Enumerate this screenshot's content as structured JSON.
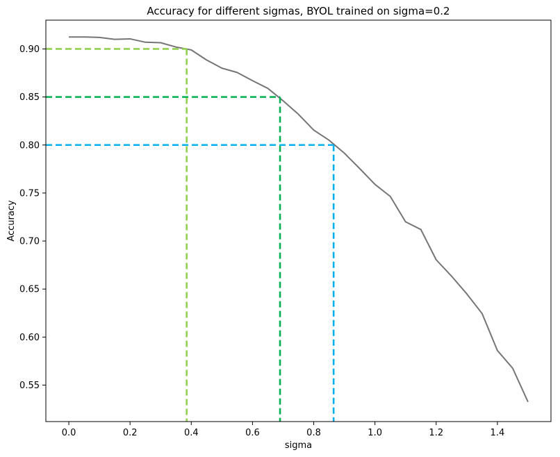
{
  "chart_data": {
    "type": "line",
    "title": "Accuracy for different sigmas, BYOL trained on sigma=0.2",
    "xlabel": "sigma",
    "ylabel": "Accuracy",
    "xlim": [
      -0.075,
      1.575
    ],
    "ylim": [
      0.512,
      0.93
    ],
    "grid": false,
    "x_ticks": [
      "0.0",
      "0.2",
      "0.4",
      "0.6",
      "0.8",
      "1.0",
      "1.2",
      "1.4"
    ],
    "y_ticks": [
      "0.55",
      "0.60",
      "0.65",
      "0.70",
      "0.75",
      "0.80",
      "0.85",
      "0.90"
    ],
    "series": [
      {
        "color": "#757575",
        "x": [
          0.0,
          0.05,
          0.1,
          0.15,
          0.2,
          0.25,
          0.3,
          0.35,
          0.4,
          0.45,
          0.5,
          0.55,
          0.6,
          0.65,
          0.7,
          0.75,
          0.8,
          0.85,
          0.9,
          0.95,
          1.0,
          1.05,
          1.1,
          1.15,
          1.2,
          1.25,
          1.3,
          1.35,
          1.4,
          1.45,
          1.5
        ],
        "y": [
          0.9125,
          0.9125,
          0.912,
          0.91,
          0.9105,
          0.907,
          0.9065,
          0.902,
          0.899,
          0.8885,
          0.88,
          0.8755,
          0.867,
          0.859,
          0.846,
          0.832,
          0.8155,
          0.805,
          0.7915,
          0.7755,
          0.759,
          0.7465,
          0.72,
          0.712,
          0.6805,
          0.6635,
          0.645,
          0.6245,
          0.586,
          0.5675,
          0.5325
        ]
      }
    ],
    "thresholds": [
      {
        "accuracy": 0.9,
        "sigma": 0.385,
        "color": "#92d050"
      },
      {
        "accuracy": 0.85,
        "sigma": 0.69,
        "color": "#00b050"
      },
      {
        "accuracy": 0.8,
        "sigma": 0.865,
        "color": "#00b0f0"
      }
    ]
  }
}
